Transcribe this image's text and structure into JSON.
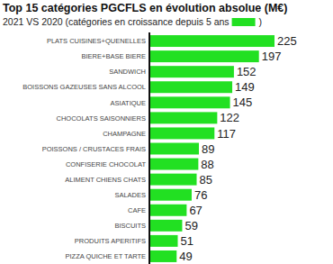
{
  "chart_data": {
    "type": "bar",
    "orientation": "horizontal",
    "title": "Top 15 catégories PGCFLS en évolution absolue (M€)",
    "subtitle": [
      "2021 VS 2020 (catégories en croissance depuis 5 ans",
      ")"
    ],
    "categories": [
      "PLATS CUISINES+QUENELLES",
      "BIERE+BASE BIERE",
      "SANDWICH",
      "BOISSONS GAZEUSES SANS ALCOOL",
      "ASIATIQUE",
      "CHOCOLATS SAISONNIERS",
      "CHAMPAGNE",
      "POISSONS / CRUSTACES FRAIS",
      "CONFISERIE CHOCOLAT",
      "ALIMENT CHIENS CHATS",
      "SALADES",
      "CAFE",
      "BISCUITS",
      "PRODUITS APERITIFS",
      "PIZZA  QUICHE ET TARTE"
    ],
    "values": [
      225,
      197,
      152,
      149,
      145,
      122,
      117,
      89,
      88,
      85,
      76,
      67,
      59,
      51,
      49
    ],
    "color": "#22e022",
    "xlim": [
      0,
      225
    ],
    "data_labels": true,
    "tick_labels": "y",
    "grid": false
  }
}
